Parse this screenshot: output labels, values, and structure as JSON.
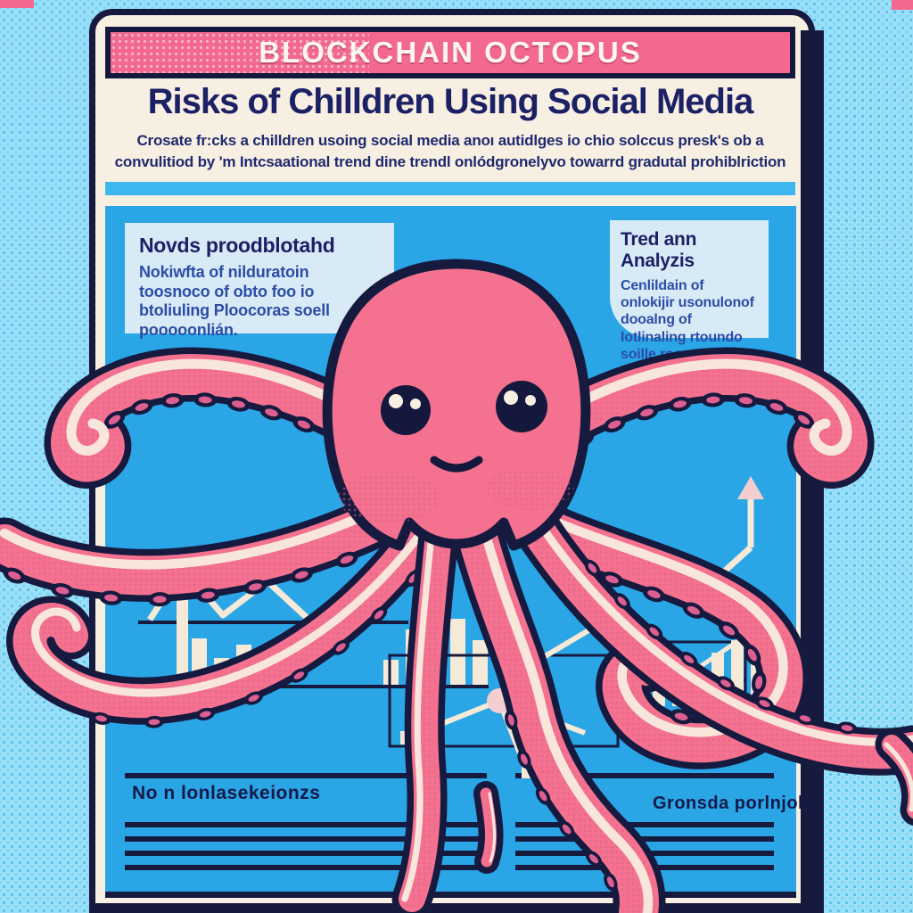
{
  "banner": {
    "title": "BLOCKCHAIN OCTOPUS"
  },
  "headline": {
    "title": "Risks of Chilldren Using Social Media",
    "subtitle_line1": "Crosate fr:cks a chilldren usoing social media anoı autidlges io chio solccus presk's ob a",
    "subtitle_line2": "convulitiod by 'm Intcsaational trend dine trendl onlódgronelyvo towarrd gradutal prohiblriction"
  },
  "info_boxes": {
    "left": {
      "heading": "Novds proodblotahd",
      "body": "Nokiwfta of nilduratoin toosnoco of obto foo io btoliuling Ploocoras soell pooooonlián."
    },
    "right": {
      "heading": "Tred ann Analyzis",
      "body": "Cenlildain of onlokijir usonulonof dooalng of lotlinaling rtoundo soille rooooulian."
    }
  },
  "footer": {
    "left_label": "No n lonlasekeionzs",
    "right_label": "Gronsda porlnjolo"
  },
  "illustration": {
    "subject": "pink cartoon octopus with eight tentacles sprawling over a poster with decorative charts",
    "graphics": [
      "line-chart",
      "bar-chart",
      "network-diagram",
      "ascending-bar-chart",
      "up-arrow"
    ]
  },
  "colors": {
    "background_blue": "#9adef8",
    "halftone_dot": "#54c1ee",
    "poster_cream": "#f8efe3",
    "banner_pink": "#f2688f",
    "navy": "#161a3f",
    "title_navy": "#1b2164",
    "panel_blue": "#2aa5e6",
    "box_bg": "#d9eaf7",
    "box_text": "#2b4da6",
    "octopus_pink": "#f4718f",
    "chart_cream": "#f5e9d8"
  }
}
